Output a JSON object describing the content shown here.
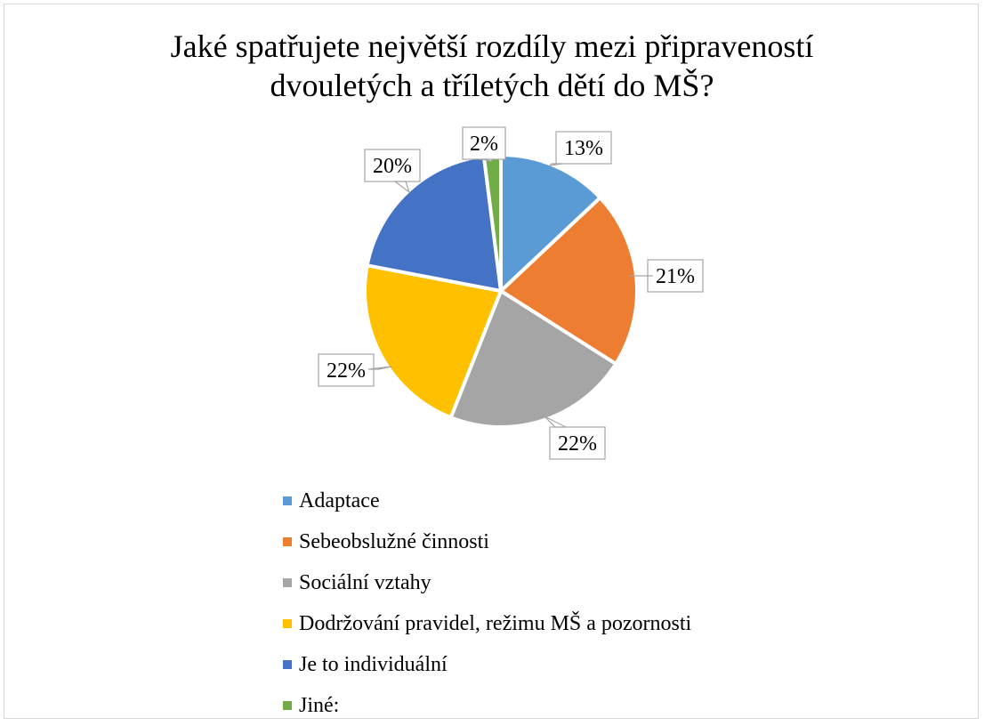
{
  "chart_data": {
    "type": "pie",
    "title": "Jaké spatřujete největší rozdíly mezi připraveností dvouletých a tříletých dětí do MŠ?",
    "title_lines": [
      "Jaké spatřujete největší rozdíly mezi připraveností",
      "dvouletých a tříletých dětí do MŠ?"
    ],
    "categories": [
      "Adaptace",
      "Sebeobslužné činnosti",
      "Sociální vztahy",
      "Dodržování pravidel, režimu MŠ a pozornosti",
      "Je to individuální",
      "Jiné:"
    ],
    "values": [
      13,
      21,
      22,
      22,
      20,
      2
    ],
    "labels": [
      "13%",
      "21%",
      "22%",
      "22%",
      "20%",
      "2%"
    ],
    "colors": [
      "#5b9bd5",
      "#ed7d31",
      "#a5a5a5",
      "#ffc000",
      "#4472c4",
      "#70ad47"
    ],
    "legend_position": "bottom"
  }
}
